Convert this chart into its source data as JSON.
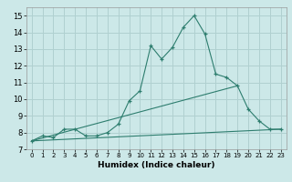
{
  "xlabel": "Humidex (Indice chaleur)",
  "background_color": "#cce8e8",
  "grid_color": "#b0d0d0",
  "line_color": "#2d7d6e",
  "xlim": [
    -0.5,
    23.5
  ],
  "ylim": [
    7.0,
    15.5
  ],
  "yticks": [
    7,
    8,
    9,
    10,
    11,
    12,
    13,
    14,
    15
  ],
  "xticks": [
    0,
    1,
    2,
    3,
    4,
    5,
    6,
    7,
    8,
    9,
    10,
    11,
    12,
    13,
    14,
    15,
    16,
    17,
    18,
    19,
    20,
    21,
    22,
    23
  ],
  "series1_x": [
    0,
    1,
    2,
    3,
    4,
    5,
    6,
    7,
    8,
    9,
    10,
    11,
    12,
    13,
    14,
    15,
    16,
    17,
    18,
    19,
    20,
    21,
    22,
    23
  ],
  "series1_y": [
    7.5,
    7.8,
    7.7,
    8.2,
    8.2,
    7.8,
    7.8,
    8.0,
    8.5,
    9.9,
    10.5,
    13.2,
    12.4,
    13.1,
    14.3,
    15.0,
    13.9,
    11.5,
    11.3,
    10.8,
    9.4,
    8.7,
    8.2,
    8.2
  ],
  "series2_x": [
    0,
    23
  ],
  "series2_y": [
    7.5,
    8.2
  ],
  "series3_x": [
    0,
    19
  ],
  "series3_y": [
    7.5,
    10.8
  ]
}
